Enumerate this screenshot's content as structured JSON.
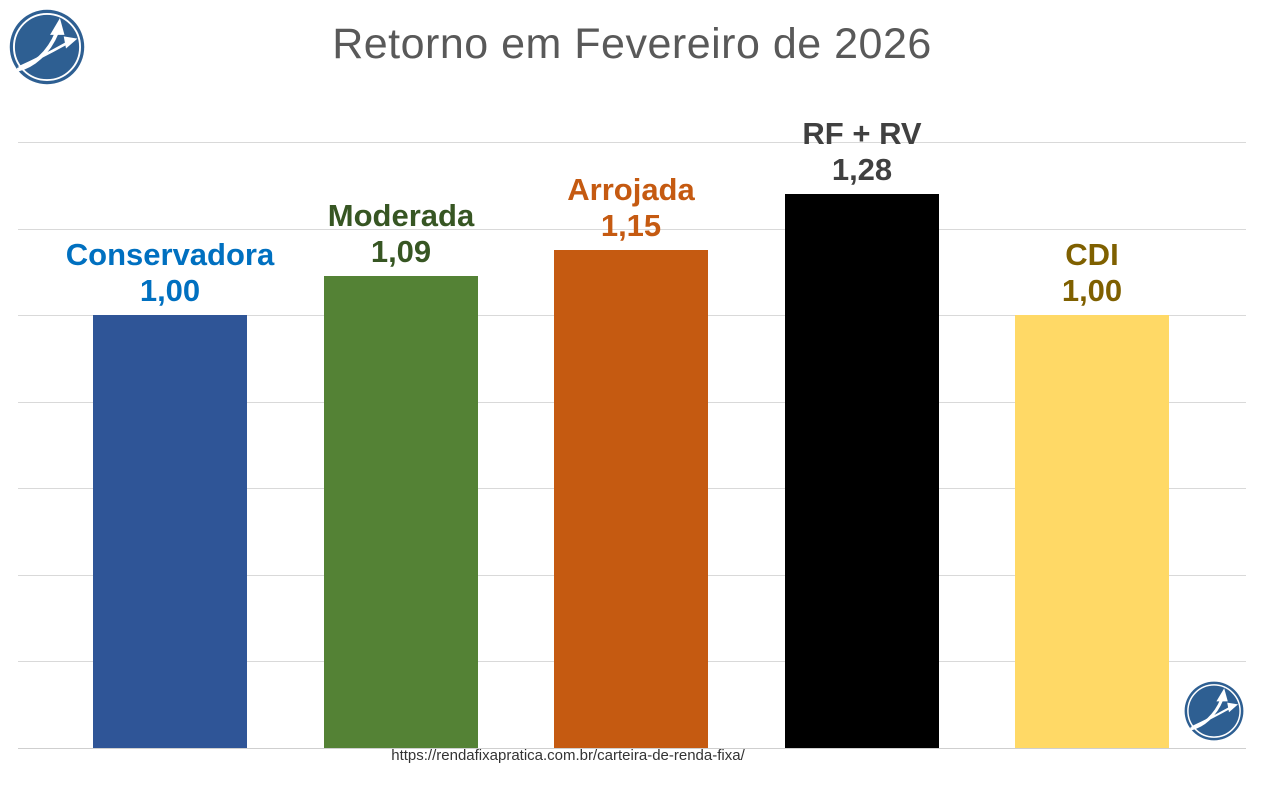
{
  "page": {
    "background": "#ffffff"
  },
  "header": {
    "title": "Retorno em Fevereiro de 2026",
    "title_color": "#595959"
  },
  "footer": {
    "source_url": "https://rendafixapratica.com.br/carteira-de-renda-fixa/"
  },
  "logo": {
    "semantic": "renda-fixa-pratica-logo",
    "circle_color": "#2e5f92",
    "glyph_color": "#ffffff"
  },
  "chart_data": {
    "type": "bar",
    "title": "Retorno em Fevereiro de 2026",
    "categories": [
      "Conservadora",
      "Moderada",
      "Arrojada",
      "RF + RV",
      "CDI"
    ],
    "values": [
      1.0,
      1.09,
      1.15,
      1.28,
      1.0
    ],
    "value_labels": [
      "1,00",
      "1,09",
      "1,15",
      "1,28",
      "1,00"
    ],
    "bar_colors": [
      "#2f5597",
      "#548235",
      "#c55a11",
      "#000000",
      "#ffd966"
    ],
    "label_colors": [
      "#0070c0",
      "#375623",
      "#c55a11",
      "#404040",
      "#7f6000"
    ],
    "xlabel": "",
    "ylabel": "",
    "ylim": [
      0,
      1.4
    ],
    "gridline_values": [
      0,
      0.2,
      0.4,
      0.6,
      0.8,
      1.0,
      1.2,
      1.4
    ],
    "grid": true,
    "legend_position": "none",
    "data_label_style": "category name and comma-decimal value stacked above each bar"
  }
}
